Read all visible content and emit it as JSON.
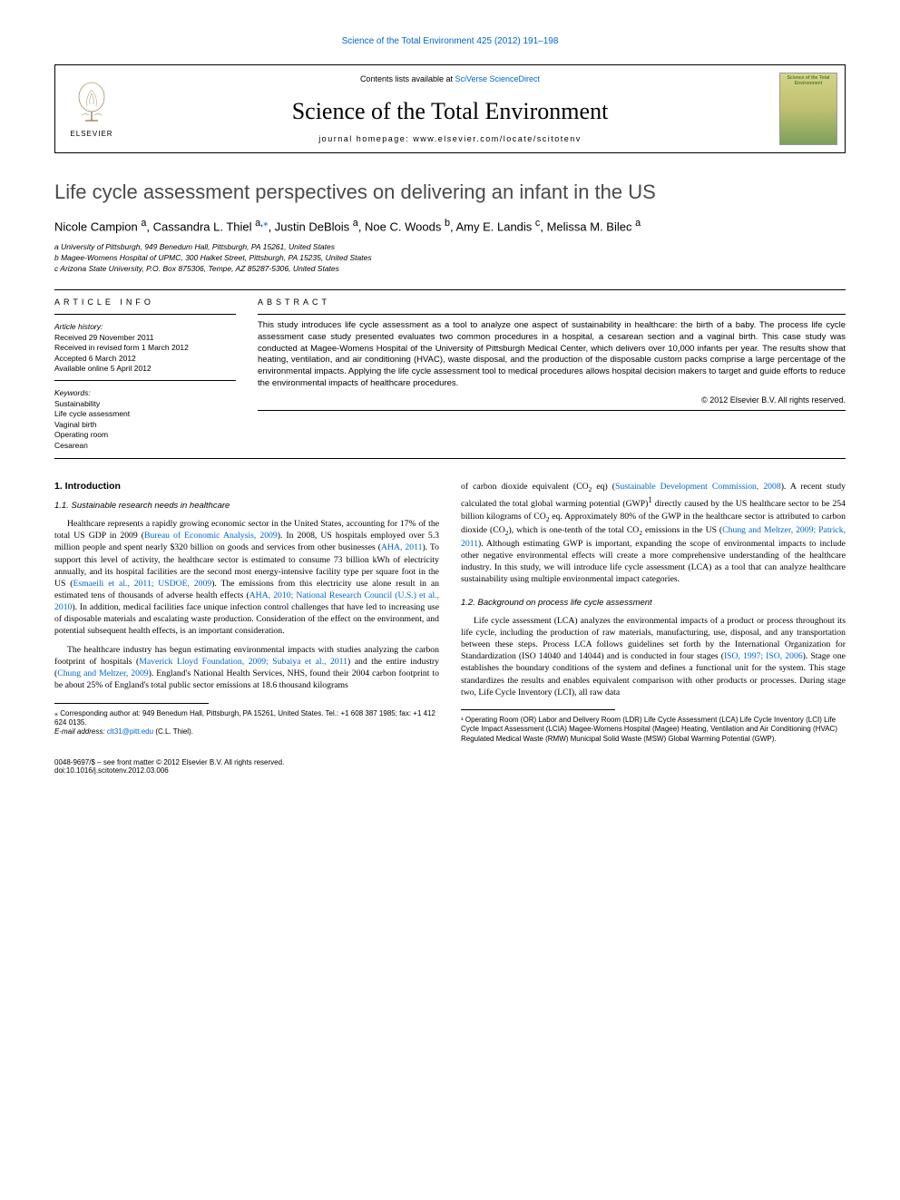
{
  "top_citation": "Science of the Total Environment 425 (2012) 191–198",
  "header": {
    "contents_prefix": "Contents lists available at ",
    "contents_link": "SciVerse ScienceDirect",
    "journal_name": "Science of the Total Environment",
    "homepage": "journal homepage: www.elsevier.com/locate/scitotenv",
    "publisher": "ELSEVIER",
    "cover_title": "Science of the Total Environment"
  },
  "article": {
    "title": "Life cycle assessment perspectives on delivering an infant in the US",
    "authors_html": "Nicole Campion <sup>a</sup>, Cassandra L. Thiel <sup>a,</sup><sup class='corr-star'>⁎</sup>, Justin DeBlois <sup>a</sup>, Noe C. Woods <sup>b</sup>, Amy E. Landis <sup>c</sup>, Melissa M. Bilec <sup>a</sup>",
    "affiliations": [
      "a University of Pittsburgh, 949 Benedum Hall, Pittsburgh, PA 15261, United States",
      "b Magee-Womens Hospital of UPMC, 300 Halket Street, Pittsburgh, PA 15235, United States",
      "c Arizona State University, P.O. Box 875306, Tempe, AZ 85287-5306, United States"
    ]
  },
  "info": {
    "heading": "ARTICLE INFO",
    "history_label": "Article history:",
    "history": [
      "Received 29 November 2011",
      "Received in revised form 1 March 2012",
      "Accepted 6 March 2012",
      "Available online 5 April 2012"
    ],
    "keywords_label": "Keywords:",
    "keywords": [
      "Sustainability",
      "Life cycle assessment",
      "Vaginal birth",
      "Operating room",
      "Cesarean"
    ]
  },
  "abstract": {
    "heading": "ABSTRACT",
    "text": "This study introduces life cycle assessment as a tool to analyze one aspect of sustainability in healthcare: the birth of a baby. The process life cycle assessment case study presented evaluates two common procedures in a hospital, a cesarean section and a vaginal birth. This case study was conducted at Magee-Womens Hospital of the University of Pittsburgh Medical Center, which delivers over 10,000 infants per year. The results show that heating, ventilation, and air conditioning (HVAC), waste disposal, and the production of the disposable custom packs comprise a large percentage of the environmental impacts. Applying the life cycle assessment tool to medical procedures allows hospital decision makers to target and guide efforts to reduce the environmental impacts of healthcare procedures.",
    "copyright": "© 2012 Elsevier B.V. All rights reserved."
  },
  "body": {
    "s1_heading": "1. Introduction",
    "s11_heading": "1.1. Sustainable research needs in healthcare",
    "s12_heading": "1.2. Background on process life cycle assessment",
    "p1_a": "Healthcare represents a rapidly growing economic sector in the United States, accounting for 17% of the total US GDP in 2009 (",
    "p1_r1": "Bureau of Economic Analysis, 2009",
    "p1_b": "). In 2008, US hospitals employed over 5.3 million people and spent nearly $320 billion on goods and services from other businesses (",
    "p1_r2": "AHA, 2011",
    "p1_c": "). To support this level of activity, the healthcare sector is estimated to consume 73 billion kWh of electricity annually, and its hospital facilities are the second most energy-intensive facility type per square foot in the US (",
    "p1_r3": "Esmaeili et al., 2011; USDOE, 2009",
    "p1_d": "). The emissions from this electricity use alone result in an estimated tens of thousands of adverse health effects (",
    "p1_r4": "AHA, 2010; National Research Council (U.S.) et al., 2010",
    "p1_e": "). In addition, medical facilities face unique infection control challenges that have led to increasing use of disposable materials and escalating waste production. Consideration of the effect on the environment, and potential subsequent health effects, is an important consideration.",
    "p2_a": "The healthcare industry has begun estimating environmental impacts with studies analyzing the carbon footprint of hospitals (",
    "p2_r1": "Maverick Lloyd Foundation, 2009; Subaiya et al., 2011",
    "p2_b": ") and the entire industry (",
    "p2_r2": "Chung and Meltzer, 2009",
    "p2_c": "). England's National Health Services, NHS, found their 2004 carbon footprint to be about 25% of England's total public sector emissions at 18.6 thousand kilograms",
    "p3_a": "of carbon dioxide equivalent (CO",
    "p3_b": " eq) (",
    "p3_r1": "Sustainable Development Commission, 2008",
    "p3_c": "). A recent study calculated the total global warming potential (GWP)",
    "p3_d": " directly caused by the US healthcare sector to be 254 billion kilograms of CO",
    "p3_e": " eq. Approximately 80% of the GWP in the healthcare sector is attributed to carbon dioxide (CO",
    "p3_f": "), which is one-tenth of the total CO",
    "p3_g": " emissions in the US (",
    "p3_r2": "Chung and Meltzer, 2009; Patrick, 2011",
    "p3_h": "). Although estimating GWP is important, expanding the scope of environmental impacts to include other negative environmental effects will create a more comprehensive understanding of the healthcare industry. In this study, we will introduce life cycle assessment (LCA) as a tool that can analyze healthcare sustainability using multiple environmental impact categories.",
    "p4_a": "Life cycle assessment (LCA) analyzes the environmental impacts of a product or process throughout its life cycle, including the production of raw materials, manufacturing, use, disposal, and any transportation between these steps. Process LCA follows guidelines set forth by the International Organization for Standardization (ISO 14040 and 14044) and is conducted in four stages (",
    "p4_r1": "ISO, 1997; ISO, 2006",
    "p4_b": "). Stage one establishes the boundary conditions of the system and defines a functional unit for the system. This stage standardizes the results and enables equivalent comparison with other products or processes. During stage two, Life Cycle Inventory (LCI), all raw data"
  },
  "footnotes": {
    "corr": "⁎ Corresponding author at: 949 Benedum Hall, Pittsburgh, PA 15261, United States. Tel.: +1 608 387 1985; fax: +1 412 624 0135.",
    "email_label": "E-mail address:",
    "email": "clt31@pitt.edu",
    "email_name": "(C.L. Thiel).",
    "fn1": "¹ Operating Room (OR) Labor and Delivery Room (LDR) Life Cycle Assessment (LCA) Life Cycle Inventory (LCI) Life Cycle Impact Assessment (LCIA) Magee-Womens Hospital (Magee) Heating, Ventilation and Air Conditioning (HVAC) Regulated Medical Waste (RMW) Municipal Solid Waste (MSW) Global Warming Potential (GWP)."
  },
  "footer": {
    "left1": "0048-9697/$ – see front matter © 2012 Elsevier B.V. All rights reserved.",
    "left2": "doi:10.1016/j.scitotenv.2012.03.006"
  },
  "colors": {
    "link": "#0066cc",
    "text": "#000000",
    "title_gray": "#4a4a4a"
  }
}
